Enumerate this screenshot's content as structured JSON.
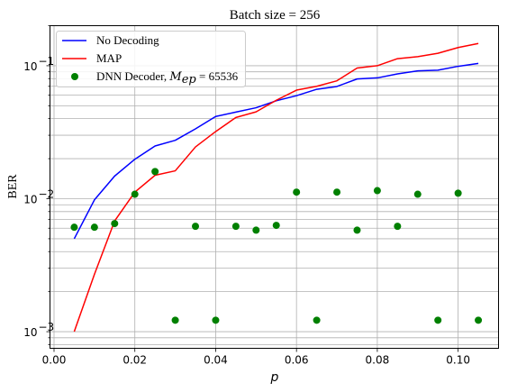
{
  "chart_data": {
    "type": "line",
    "title": "Batch size = 256",
    "xlabel": "p",
    "ylabel": "BER",
    "xlim": [
      -0.001,
      0.11
    ],
    "ylim": [
      0.00075,
      0.2
    ],
    "yscale": "log",
    "grid": true,
    "legend_position": "top-left",
    "x_ticks": [
      0.0,
      0.02,
      0.04,
      0.06,
      0.08,
      0.1
    ],
    "x_tick_labels": [
      "0.00",
      "0.02",
      "0.04",
      "0.06",
      "0.08",
      "0.10"
    ],
    "y_ticks": [
      0.001,
      0.01,
      0.1
    ],
    "y_tick_labels": [
      "10",
      "10",
      "10"
    ],
    "y_tick_exponents": [
      "−3",
      "−2",
      "−1"
    ],
    "series": [
      {
        "name": "No Decoding",
        "kind": "line",
        "color": "#0000ff",
        "x": [
          0.005,
          0.01,
          0.015,
          0.02,
          0.025,
          0.03,
          0.035,
          0.04,
          0.045,
          0.05,
          0.055,
          0.06,
          0.065,
          0.07,
          0.075,
          0.08,
          0.085,
          0.09,
          0.095,
          0.1,
          0.105
        ],
        "y": [
          0.005,
          0.0098,
          0.0148,
          0.0198,
          0.0249,
          0.0275,
          0.0335,
          0.0415,
          0.0448,
          0.0483,
          0.0545,
          0.0595,
          0.0665,
          0.0698,
          0.0795,
          0.081,
          0.0868,
          0.0915,
          0.0925,
          0.099,
          0.104
        ]
      },
      {
        "name": "MAP",
        "kind": "line",
        "color": "#ff0000",
        "x": [
          0.005,
          0.01,
          0.015,
          0.02,
          0.025,
          0.03,
          0.035,
          0.04,
          0.045,
          0.05,
          0.055,
          0.06,
          0.065,
          0.07,
          0.075,
          0.08,
          0.085,
          0.09,
          0.095,
          0.1,
          0.105
        ],
        "y": [
          0.001,
          0.0027,
          0.0068,
          0.0112,
          0.015,
          0.0162,
          0.0245,
          0.032,
          0.0408,
          0.045,
          0.055,
          0.0655,
          0.07,
          0.077,
          0.096,
          0.1,
          0.113,
          0.117,
          0.124,
          0.137,
          0.147
        ]
      },
      {
        "name": "DNN Decoder, ",
        "name_math": "M",
        "name_math_sub": "ep",
        "name_math_rest": " = 65536",
        "kind": "scatter",
        "color": "#008000",
        "x": [
          0.005,
          0.01,
          0.015,
          0.02,
          0.025,
          0.03,
          0.035,
          0.04,
          0.045,
          0.05,
          0.055,
          0.06,
          0.065,
          0.07,
          0.075,
          0.08,
          0.085,
          0.09,
          0.095,
          0.1,
          0.105
        ],
        "y": [
          0.0061,
          0.0061,
          0.0065,
          0.0108,
          0.016,
          0.00122,
          0.0062,
          0.00122,
          0.0062,
          0.0058,
          0.0063,
          0.0112,
          0.00122,
          0.0112,
          0.0058,
          0.0115,
          0.0062,
          0.0108,
          0.00122,
          0.011,
          0.00122
        ]
      }
    ]
  }
}
